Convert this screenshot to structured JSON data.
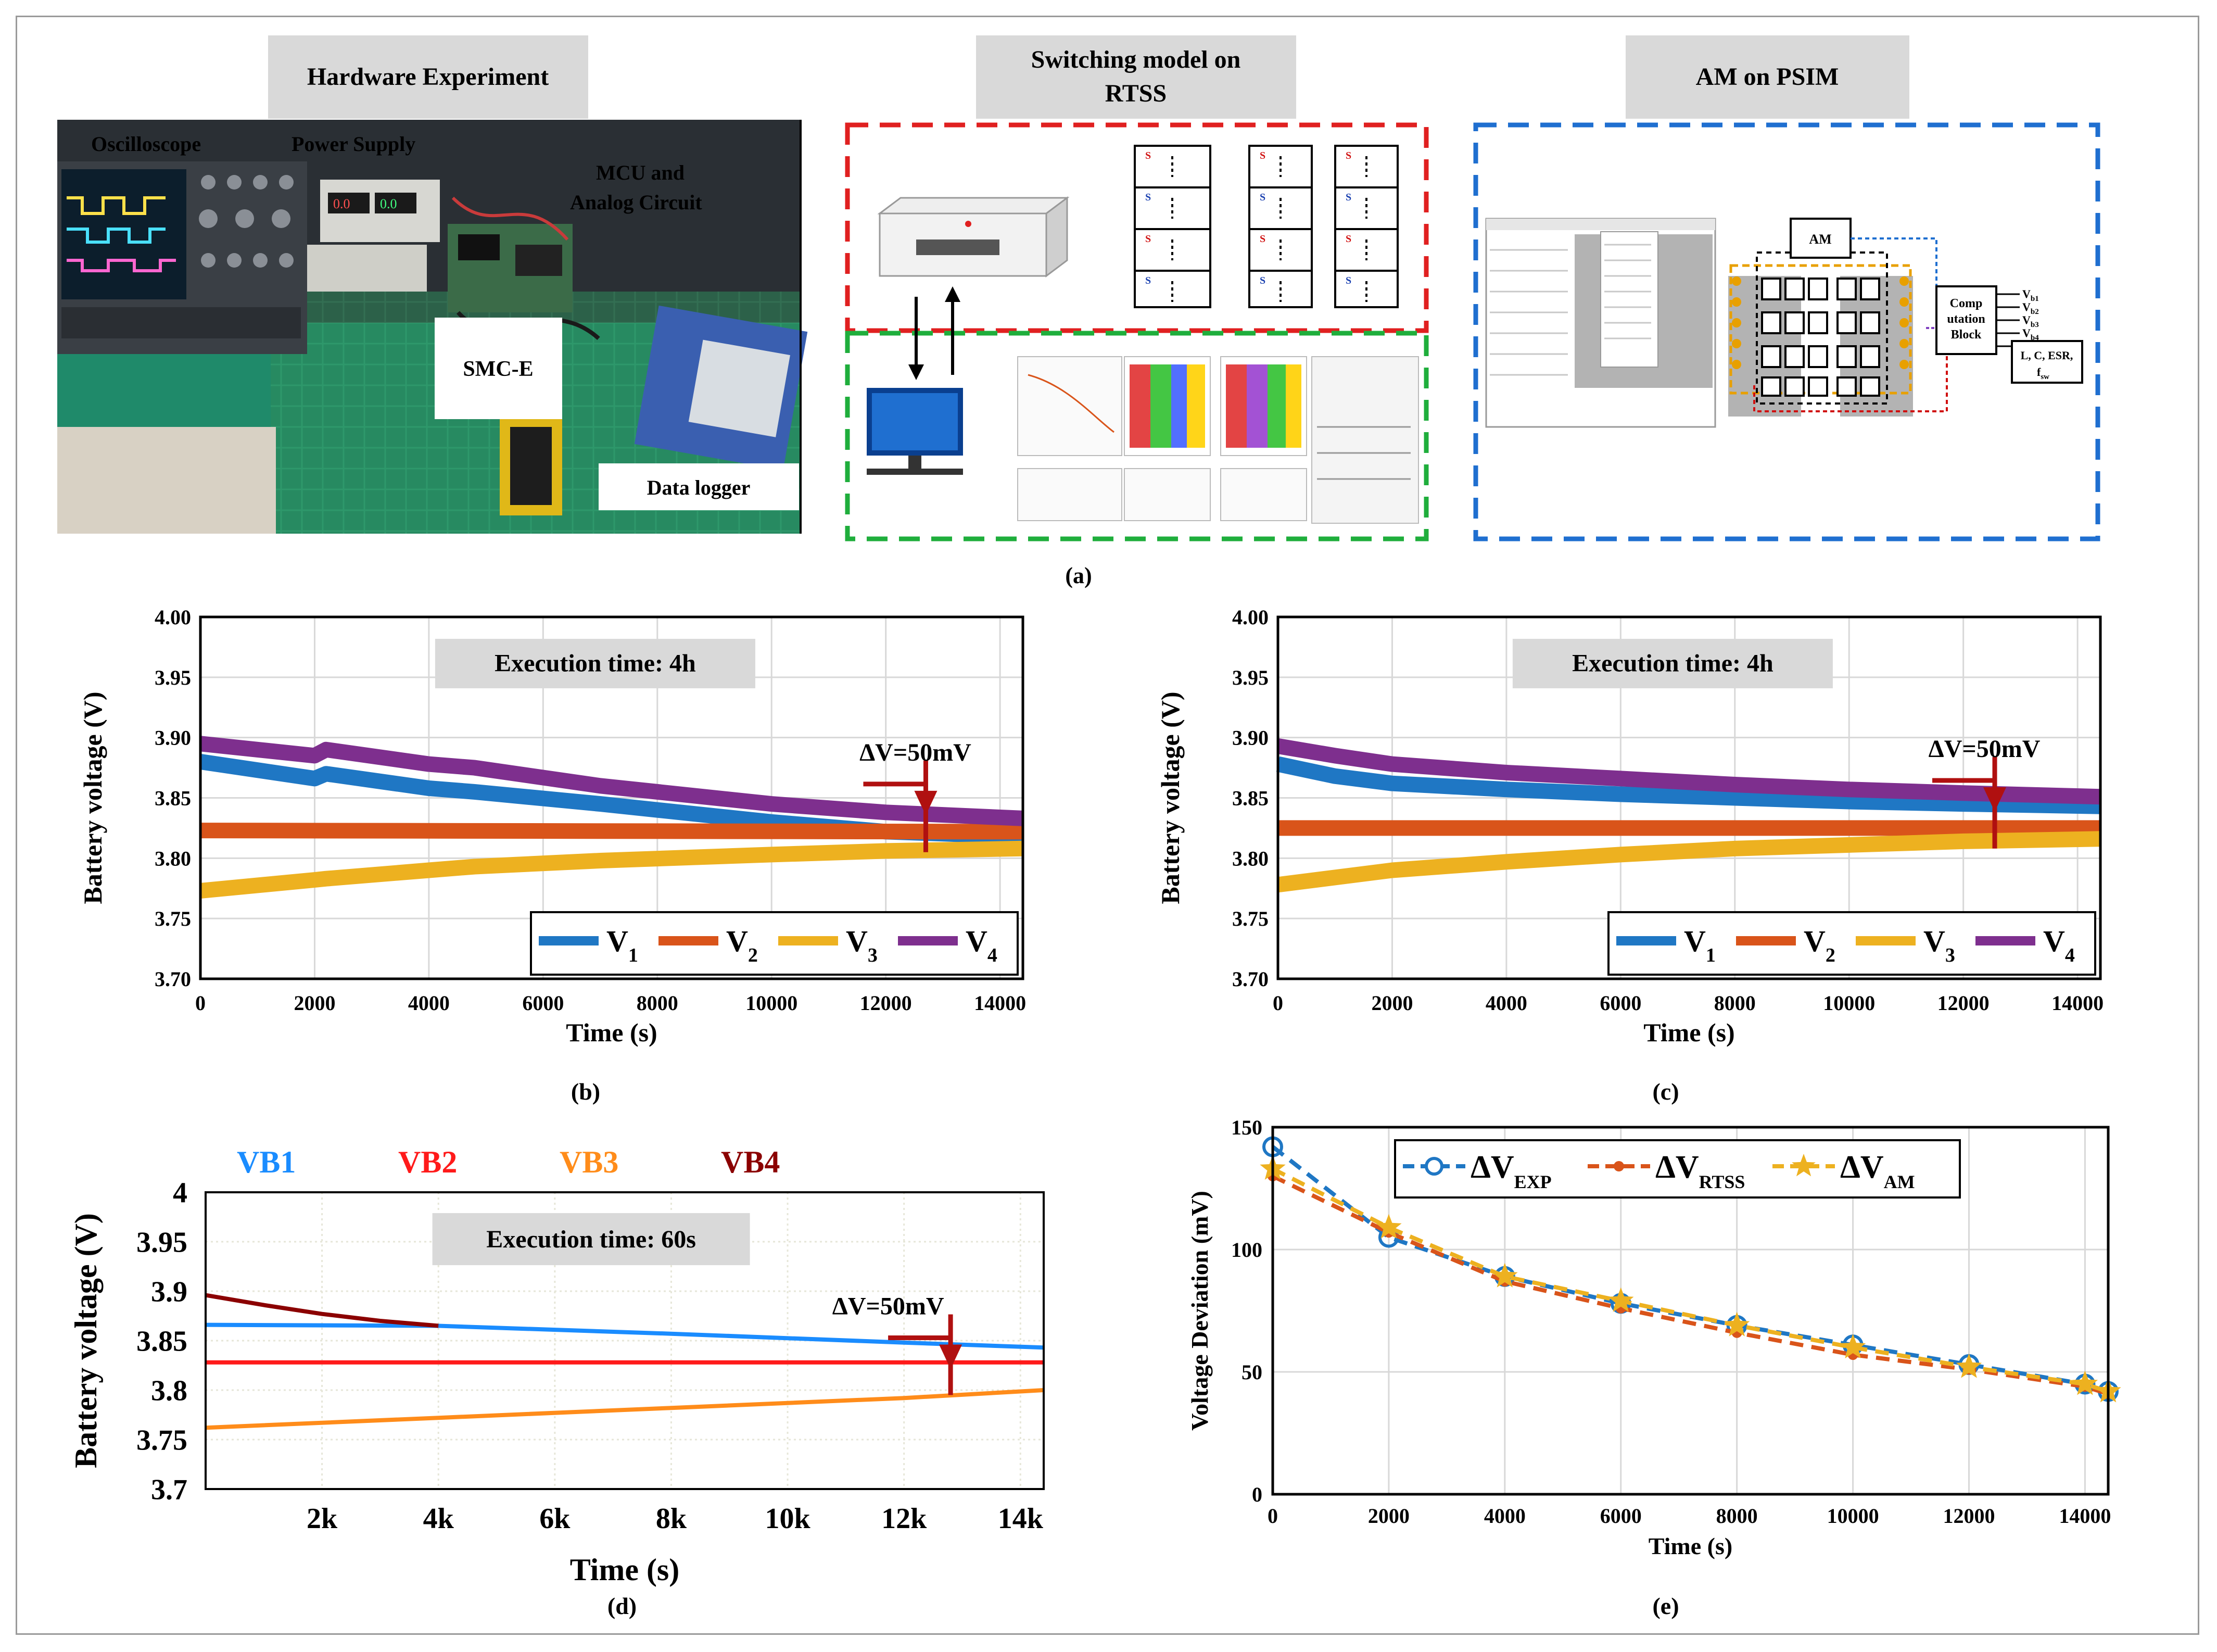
{
  "panel_a": {
    "caption": "(a)",
    "hardware": {
      "title": "Hardware Experiment",
      "labels": [
        "Oscilloscope",
        "Power Supply",
        "MCU and",
        "Analog Circuit",
        "SMC-E",
        "Data logger"
      ]
    },
    "rtss": {
      "title_line1": "Switching model on",
      "title_line2": "RTSS"
    },
    "psim": {
      "title": "AM on PSIM",
      "am_label": "AM",
      "comp_block_lines": [
        "Comp",
        "utation",
        "Block"
      ],
      "inputs": [
        "V",
        "V",
        "V",
        "V"
      ],
      "input_subs": [
        "b1",
        "b2",
        "b3",
        "b4"
      ],
      "params_line1": "L, C, ESR,",
      "params_line2": "f",
      "params_sub": "sw"
    }
  },
  "chart_data": [
    {
      "id": "b",
      "type": "line",
      "caption": "(b)",
      "annotation": "Execution time: 4h",
      "delta_label": "ΔV=50mV",
      "xlabel": "Time (s)",
      "ylabel": "Battery voltage (V)",
      "xlim": [
        0,
        14400
      ],
      "ylim": [
        3.7,
        4.0
      ],
      "xticks": [
        0,
        2000,
        4000,
        6000,
        8000,
        10000,
        12000,
        14000
      ],
      "xtick_labels": [
        "0",
        "2000",
        "4000",
        "6000",
        "8000",
        "10000",
        "12000",
        "14000"
      ],
      "yticks": [
        3.7,
        3.75,
        3.8,
        3.85,
        3.9,
        3.95,
        4.0
      ],
      "ytick_labels": [
        "3.70",
        "3.75",
        "3.80",
        "3.85",
        "3.90",
        "3.95",
        "4.00"
      ],
      "delta_at": 12700,
      "delta_range": [
        3.805,
        3.855
      ],
      "legend": {
        "position": "bottom-right",
        "entries": [
          {
            "name": "V",
            "sub": "1"
          },
          {
            "name": "V",
            "sub": "2"
          },
          {
            "name": "V",
            "sub": "3"
          },
          {
            "name": "V",
            "sub": "4"
          }
        ]
      },
      "series": [
        {
          "name": "V1",
          "color": "#1f77c4",
          "x": [
            0,
            2000,
            2200,
            4000,
            4800,
            7000,
            10000,
            12000,
            14400
          ],
          "values": [
            3.88,
            3.866,
            3.87,
            3.858,
            3.855,
            3.845,
            3.83,
            3.822,
            3.818
          ]
        },
        {
          "name": "V2",
          "color": "#d9541a",
          "x": [
            0,
            14400
          ],
          "values": [
            3.823,
            3.822
          ]
        },
        {
          "name": "V3",
          "color": "#edb120",
          "x": [
            0,
            2000,
            2200,
            4000,
            4800,
            7000,
            10000,
            12000,
            14400
          ],
          "values": [
            3.773,
            3.782,
            3.783,
            3.79,
            3.793,
            3.798,
            3.803,
            3.806,
            3.808
          ]
        },
        {
          "name": "V4",
          "color": "#7e2f8e",
          "x": [
            0,
            2000,
            2200,
            4000,
            4800,
            7000,
            10000,
            12000,
            14400
          ],
          "values": [
            3.895,
            3.885,
            3.89,
            3.878,
            3.875,
            3.86,
            3.845,
            3.838,
            3.833
          ]
        }
      ]
    },
    {
      "id": "c",
      "type": "line",
      "caption": "(c)",
      "annotation": "Execution time: 4h",
      "delta_label": "ΔV=50mV",
      "xlabel": "Time (s)",
      "ylabel": "Battery voltage (V)",
      "xlim": [
        0,
        14400
      ],
      "ylim": [
        3.7,
        4.0
      ],
      "xticks": [
        0,
        2000,
        4000,
        6000,
        8000,
        10000,
        12000,
        14000
      ],
      "xtick_labels": [
        "0",
        "2000",
        "4000",
        "6000",
        "8000",
        "10000",
        "12000",
        "14000"
      ],
      "yticks": [
        3.7,
        3.75,
        3.8,
        3.85,
        3.9,
        3.95,
        4.0
      ],
      "ytick_labels": [
        "3.70",
        "3.75",
        "3.80",
        "3.85",
        "3.90",
        "3.95",
        "4.00"
      ],
      "delta_at": 12550,
      "delta_range": [
        3.808,
        3.858
      ],
      "legend": {
        "position": "bottom-right",
        "entries": [
          {
            "name": "V",
            "sub": "1"
          },
          {
            "name": "V",
            "sub": "2"
          },
          {
            "name": "V",
            "sub": "3"
          },
          {
            "name": "V",
            "sub": "4"
          }
        ]
      },
      "series": [
        {
          "name": "V1",
          "color": "#1f77c4",
          "x": [
            0,
            1000,
            2000,
            4000,
            6000,
            8000,
            10000,
            12000,
            14400
          ],
          "values": [
            3.878,
            3.868,
            3.862,
            3.857,
            3.853,
            3.85,
            3.847,
            3.845,
            3.843
          ]
        },
        {
          "name": "V2",
          "color": "#d9541a",
          "x": [
            0,
            14400
          ],
          "values": [
            3.825,
            3.825
          ]
        },
        {
          "name": "V3",
          "color": "#edb120",
          "x": [
            0,
            1000,
            2000,
            4000,
            6000,
            8000,
            10000,
            12000,
            14400
          ],
          "values": [
            3.778,
            3.784,
            3.79,
            3.797,
            3.803,
            3.808,
            3.811,
            3.814,
            3.816
          ]
        },
        {
          "name": "V4",
          "color": "#7e2f8e",
          "x": [
            0,
            1000,
            2000,
            4000,
            6000,
            8000,
            10000,
            12000,
            14400
          ],
          "values": [
            3.893,
            3.885,
            3.878,
            3.871,
            3.866,
            3.861,
            3.857,
            3.854,
            3.851
          ]
        }
      ]
    },
    {
      "id": "d",
      "type": "line",
      "caption": "(d)",
      "annotation": "Execution time: 60s",
      "delta_label": "ΔV=50mV",
      "xlabel": "Time (s)",
      "ylabel": "Battery voltage (V)",
      "xlim": [
        0,
        14400
      ],
      "ylim": [
        3.7,
        4.0
      ],
      "xticks": [
        2000,
        4000,
        6000,
        8000,
        10000,
        12000,
        14000
      ],
      "xtick_labels": [
        "2k",
        "4k",
        "6k",
        "8k",
        "10k",
        "12k",
        "14k"
      ],
      "yticks": [
        3.7,
        3.75,
        3.8,
        3.85,
        3.9,
        3.95,
        4.0
      ],
      "ytick_labels": [
        "3.7",
        "3.75",
        "3.8",
        "3.85",
        "3.9",
        "3.95",
        "4"
      ],
      "delta_at": 12800,
      "delta_range": [
        3.795,
        3.845
      ],
      "legend": {
        "position": "top",
        "entries": [
          {
            "name": "VB1",
            "color": "#1a8cff"
          },
          {
            "name": "VB2",
            "color": "#ff1a1a"
          },
          {
            "name": "VB3",
            "color": "#ff8c1a"
          },
          {
            "name": "VB4",
            "color": "#8b0000"
          }
        ]
      },
      "series": [
        {
          "name": "VB1",
          "color": "#1a8cff",
          "x": [
            0,
            4000,
            8000,
            12000,
            14400
          ],
          "values": [
            3.866,
            3.865,
            3.857,
            3.848,
            3.843
          ]
        },
        {
          "name": "VB2",
          "color": "#ff1a1a",
          "x": [
            0,
            14400
          ],
          "values": [
            3.828,
            3.828
          ]
        },
        {
          "name": "VB3",
          "color": "#ff8c1a",
          "x": [
            0,
            4000,
            8000,
            12000,
            14400
          ],
          "values": [
            3.762,
            3.772,
            3.782,
            3.792,
            3.8
          ]
        },
        {
          "name": "VB4",
          "color": "#8b0000",
          "x": [
            0,
            1000,
            2000,
            3000,
            4000
          ],
          "values": [
            3.896,
            3.886,
            3.877,
            3.87,
            3.865
          ]
        }
      ]
    },
    {
      "id": "e",
      "type": "line",
      "caption": "(e)",
      "xlabel": "Time (s)",
      "ylabel": "Voltage Deviation (mV)",
      "xlim": [
        0,
        14400
      ],
      "ylim": [
        0,
        150
      ],
      "xticks": [
        0,
        2000,
        4000,
        6000,
        8000,
        10000,
        12000,
        14000
      ],
      "xtick_labels": [
        "0",
        "2000",
        "4000",
        "6000",
        "8000",
        "10000",
        "12000",
        "14000"
      ],
      "yticks": [
        0,
        50,
        100,
        150
      ],
      "ytick_labels": [
        "0",
        "50",
        "100",
        "150"
      ],
      "legend": {
        "position": "top",
        "entries": [
          {
            "name": "ΔV",
            "sub": "EXP"
          },
          {
            "name": "ΔV",
            "sub": "RTSS"
          },
          {
            "name": "ΔV",
            "sub": "AM"
          }
        ]
      },
      "series": [
        {
          "name": "ΔV_EXP",
          "color": "#1f77c4",
          "marker": "circle",
          "x": [
            0,
            2000,
            4000,
            6000,
            8000,
            10000,
            12000,
            14000,
            14400
          ],
          "values": [
            142,
            105,
            89,
            78,
            69,
            61,
            53,
            45,
            42
          ]
        },
        {
          "name": "ΔV_RTSS",
          "color": "#d9541a",
          "marker": "dot",
          "x": [
            0,
            2000,
            4000,
            6000,
            8000,
            10000,
            12000,
            14000,
            14400
          ],
          "values": [
            130,
            107,
            87,
            76,
            66,
            57,
            51,
            44,
            41
          ]
        },
        {
          "name": "ΔV_AM",
          "color": "#edb120",
          "marker": "star",
          "x": [
            0,
            2000,
            4000,
            6000,
            8000,
            10000,
            12000,
            14000,
            14400
          ],
          "values": [
            133,
            109,
            89,
            79,
            69,
            60,
            52,
            45,
            42
          ]
        }
      ]
    }
  ]
}
